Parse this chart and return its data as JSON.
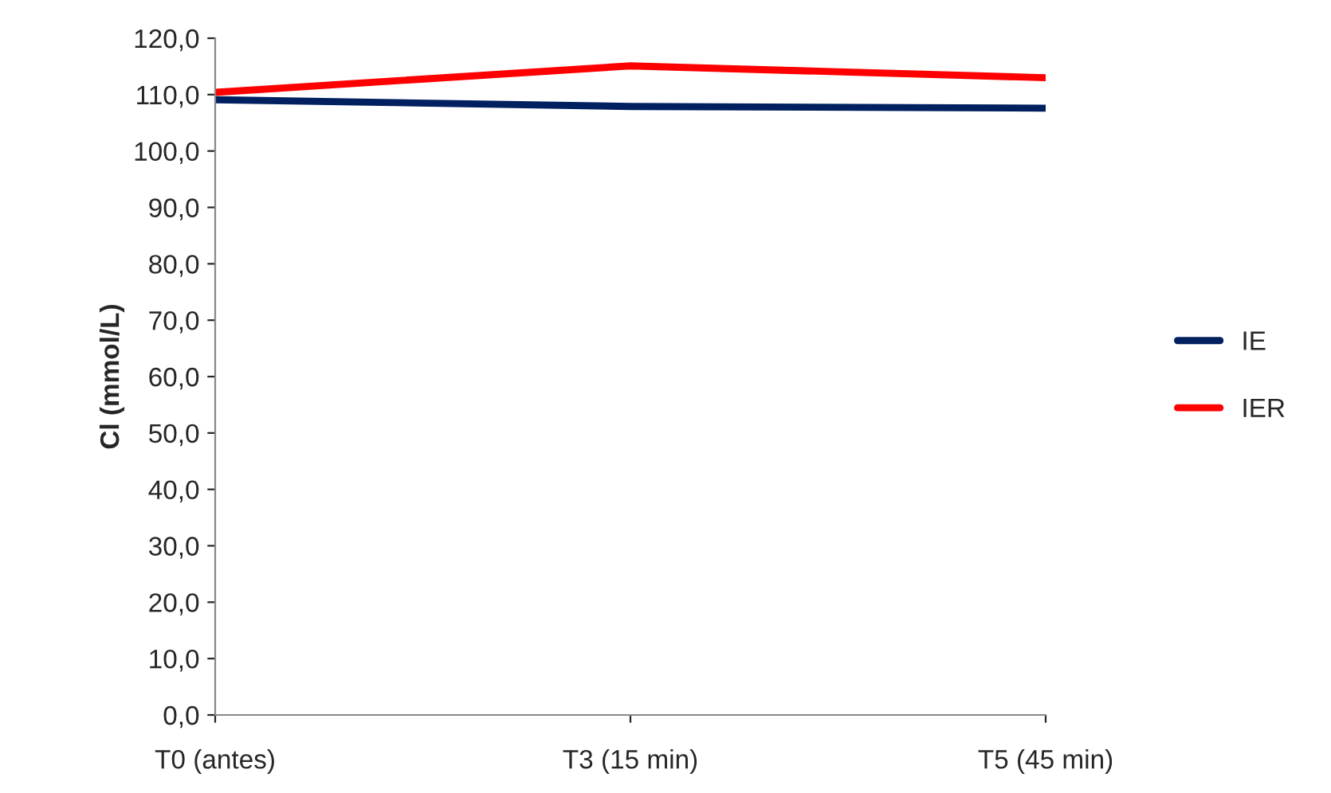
{
  "chart_data": {
    "type": "line",
    "ylabel": "Cl (mmol/L)",
    "categories": [
      "T0 (antes)",
      "T3 (15 min)",
      "T5 (45 min)"
    ],
    "series": [
      {
        "name": "IE",
        "color": "#002060",
        "values": [
          109.1,
          107.9,
          107.6
        ]
      },
      {
        "name": "IER",
        "color": "#ff0000",
        "values": [
          110.4,
          115.1,
          113.0
        ]
      }
    ],
    "ylim": [
      0,
      120
    ],
    "yticks": [
      {
        "value": 0,
        "label": "0,0"
      },
      {
        "value": 10,
        "label": "10,0"
      },
      {
        "value": 20,
        "label": "20,0"
      },
      {
        "value": 30,
        "label": "30,0"
      },
      {
        "value": 40,
        "label": "40,0"
      },
      {
        "value": 50,
        "label": "50,0"
      },
      {
        "value": 60,
        "label": "60,0"
      },
      {
        "value": 70,
        "label": "70,0"
      },
      {
        "value": 80,
        "label": "80,0"
      },
      {
        "value": 90,
        "label": "90,0"
      },
      {
        "value": 100,
        "label": "100,0"
      },
      {
        "value": 110,
        "label": "110,0"
      },
      {
        "value": 120,
        "label": "120,0"
      }
    ],
    "grid": false,
    "legend": "right",
    "marker": "none",
    "line_style": "solid"
  }
}
